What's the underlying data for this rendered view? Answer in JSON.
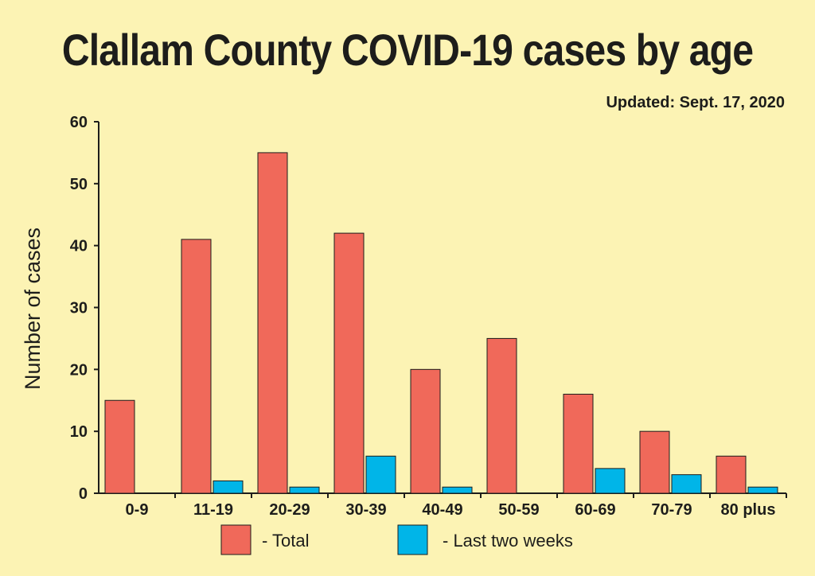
{
  "chart_data": {
    "type": "bar",
    "title": "Clallam County COVID-19 cases by age",
    "subtitle": "Updated: Sept. 17, 2020",
    "xlabel": "",
    "ylabel": "Number of cases",
    "ylim": [
      0,
      60
    ],
    "yticks": [
      0,
      10,
      20,
      30,
      40,
      50,
      60
    ],
    "grid": false,
    "legend_position": "bottom",
    "categories": [
      "0-9",
      "11-19",
      "20-29",
      "30-39",
      "40-49",
      "50-59",
      "60-69",
      "70-79",
      "80 plus"
    ],
    "series": [
      {
        "name": "- Total",
        "color": "#f0695a",
        "values": [
          15,
          41,
          55,
          42,
          20,
          25,
          16,
          10,
          6
        ]
      },
      {
        "name": "- Last two weeks",
        "color": "#00b5e8",
        "values": [
          0,
          2,
          1,
          6,
          1,
          0,
          4,
          3,
          1
        ]
      }
    ]
  }
}
